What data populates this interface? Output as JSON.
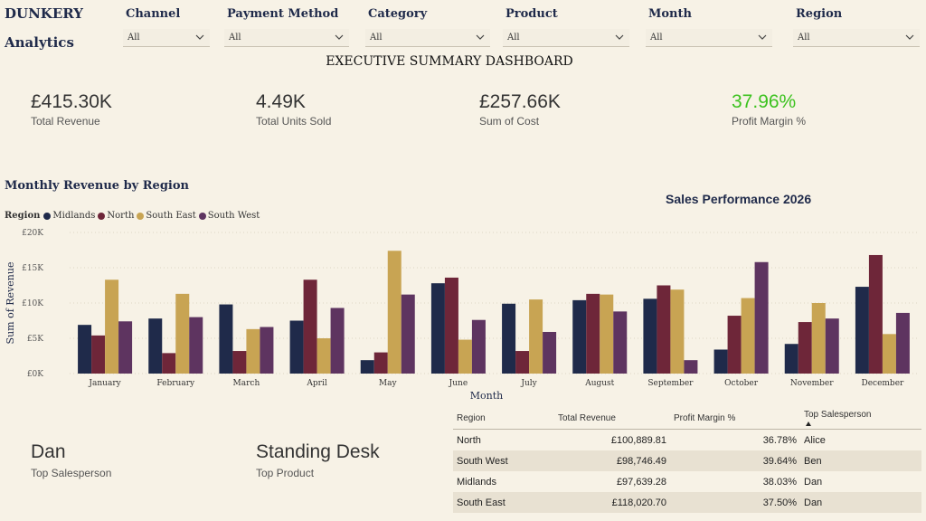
{
  "brand": {
    "line1": "DUNKERY",
    "line2": "Analytics"
  },
  "filters": [
    {
      "label": "Channel",
      "value": "All"
    },
    {
      "label": "Payment Method",
      "value": "All"
    },
    {
      "label": "Category",
      "value": "All"
    },
    {
      "label": "Product",
      "value": "All"
    },
    {
      "label": "Month",
      "value": "All"
    },
    {
      "label": "Region",
      "value": "All"
    }
  ],
  "dashboard_title": "EXECUTIVE SUMMARY DASHBOARD",
  "kpis": [
    {
      "value": "£415.30K",
      "label": "Total Revenue",
      "color": "#333333"
    },
    {
      "value": "4.49K",
      "label": "Total Units Sold",
      "color": "#333333"
    },
    {
      "value": "£257.66K",
      "label": "Sum of Cost",
      "color": "#333333"
    },
    {
      "value": "37.96%",
      "label": "Profit Margin %",
      "color": "#3cc21f"
    }
  ],
  "chart_section_title": "Monthly Revenue by Region",
  "sales_performance_title": "Sales Performance 2026",
  "chart_data": {
    "type": "bar",
    "title": "Monthly Revenue by Region",
    "xlabel": "Month",
    "ylabel": "Sum of Revenue",
    "legend_title": "Region",
    "legend_position": "top-left",
    "grid": true,
    "ylim": [
      0,
      20000
    ],
    "yticks": [
      "£0K",
      "£5K",
      "£10K",
      "£15K",
      "£20K"
    ],
    "categories": [
      "January",
      "February",
      "March",
      "April",
      "May",
      "June",
      "July",
      "August",
      "September",
      "October",
      "November",
      "December"
    ],
    "series": [
      {
        "name": "Midlands",
        "color": "#1f2a4a",
        "values": [
          6900,
          7800,
          9800,
          7500,
          1900,
          12800,
          9900,
          10400,
          10600,
          3400,
          4200,
          12300
        ]
      },
      {
        "name": "North",
        "color": "#6e2639",
        "values": [
          5400,
          2900,
          3200,
          13300,
          3000,
          13600,
          3200,
          11300,
          12500,
          8200,
          7300,
          16800
        ]
      },
      {
        "name": "South East",
        "color": "#c8a453",
        "values": [
          13300,
          11300,
          6300,
          5000,
          17400,
          4800,
          10500,
          11200,
          11900,
          10700,
          10000,
          5600
        ]
      },
      {
        "name": "South West",
        "color": "#5e3460",
        "values": [
          7400,
          8000,
          6600,
          9300,
          11200,
          7600,
          5900,
          8800,
          1900,
          15800,
          7800,
          8600
        ]
      }
    ]
  },
  "top_salesperson": {
    "name": "Dan",
    "label": "Top Salesperson"
  },
  "top_product": {
    "name": "Standing Desk",
    "label": "Top Product"
  },
  "table": {
    "headers": [
      "Region",
      "Total Revenue",
      "Profit Margin %",
      "Top Salesperson"
    ],
    "rows": [
      [
        "North",
        "£100,889.81",
        "36.78%",
        "Alice"
      ],
      [
        "South West",
        "£98,746.49",
        "39.64%",
        "Ben"
      ],
      [
        "Midlands",
        "£97,639.28",
        "38.03%",
        "Dan"
      ],
      [
        "South East",
        "£118,020.70",
        "37.50%",
        "Dan"
      ]
    ]
  }
}
